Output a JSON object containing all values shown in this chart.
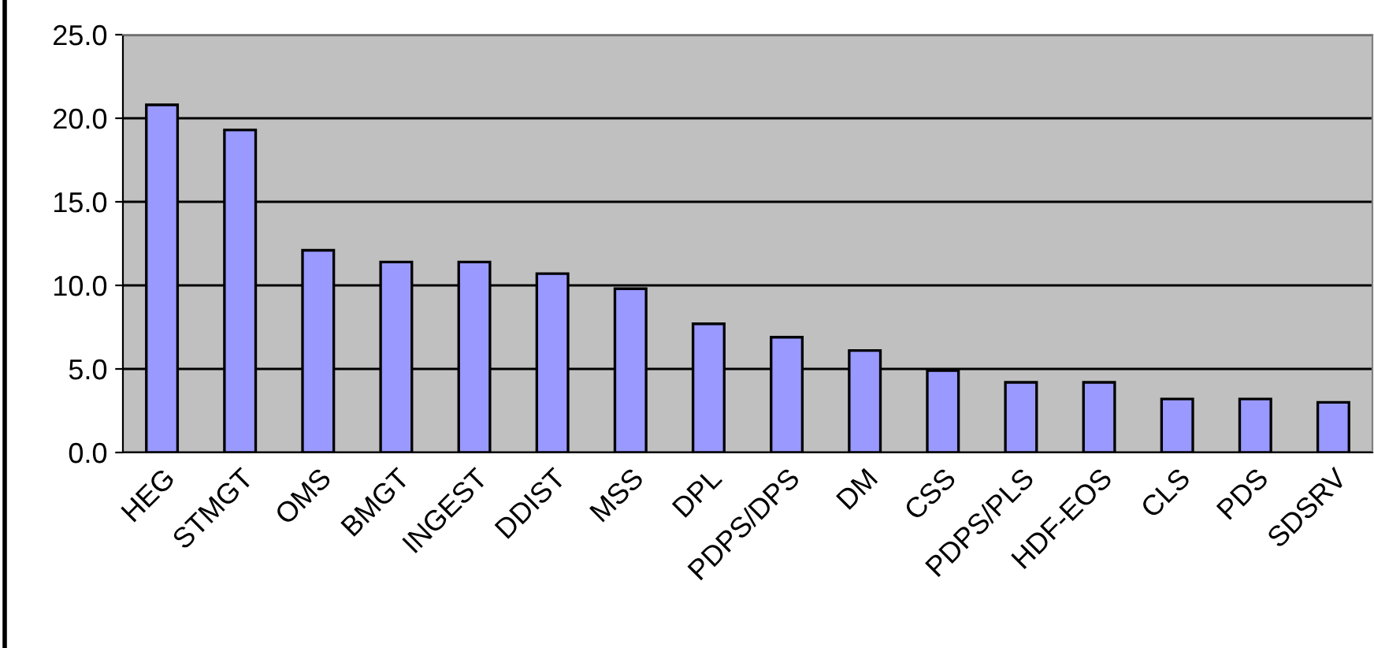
{
  "chart_data": {
    "type": "bar",
    "categories": [
      "HEG",
      "STMGT",
      "OMS",
      "BMGT",
      "INGEST",
      "DDIST",
      "MSS",
      "DPL",
      "PDPS/DPS",
      "DM",
      "CSS",
      "PDPS/PLS",
      "HDF-EOS",
      "CLS",
      "PDS",
      "SDSRV"
    ],
    "values": [
      20.8,
      19.3,
      12.1,
      11.4,
      11.4,
      10.7,
      9.8,
      7.7,
      6.9,
      6.1,
      4.9,
      4.2,
      4.2,
      3.2,
      3.2,
      3.0
    ],
    "color": "#9999ff",
    "ylim": [
      0,
      25
    ],
    "yticks": [
      {
        "value": 0,
        "label": "0.0"
      },
      {
        "value": 5,
        "label": "5.0"
      },
      {
        "value": 10,
        "label": "10.0"
      },
      {
        "value": 15,
        "label": "15.0"
      },
      {
        "value": 20,
        "label": "20.0"
      },
      {
        "value": 25,
        "label": "25.0"
      }
    ],
    "grid": "y"
  }
}
